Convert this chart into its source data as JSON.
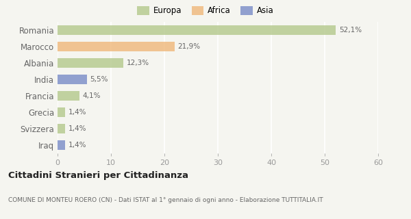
{
  "categories": [
    "Romania",
    "Marocco",
    "Albania",
    "India",
    "Francia",
    "Grecia",
    "Svizzera",
    "Iraq"
  ],
  "values": [
    52.1,
    21.9,
    12.3,
    5.5,
    4.1,
    1.4,
    1.4,
    1.4
  ],
  "labels": [
    "52,1%",
    "21,9%",
    "12,3%",
    "5,5%",
    "4,1%",
    "1,4%",
    "1,4%",
    "1,4%"
  ],
  "colors": [
    "#b5c98e",
    "#f0b97c",
    "#b5c98e",
    "#7b8ec8",
    "#b5c98e",
    "#b5c98e",
    "#b5c98e",
    "#7b8ec8"
  ],
  "legend_labels": [
    "Europa",
    "Africa",
    "Asia"
  ],
  "legend_colors": [
    "#b5c98e",
    "#f0b97c",
    "#7b8ec8"
  ],
  "xlim": [
    0,
    60
  ],
  "xticks": [
    0,
    10,
    20,
    30,
    40,
    50,
    60
  ],
  "title": "Cittadini Stranieri per Cittadinanza",
  "subtitle": "COMUNE DI MONTEU ROERO (CN) - Dati ISTAT al 1° gennaio di ogni anno - Elaborazione TUTTITALIA.IT",
  "bg_color": "#f5f5f0",
  "grid_color": "#ffffff",
  "bar_height": 0.6,
  "bar_alpha": 0.82
}
